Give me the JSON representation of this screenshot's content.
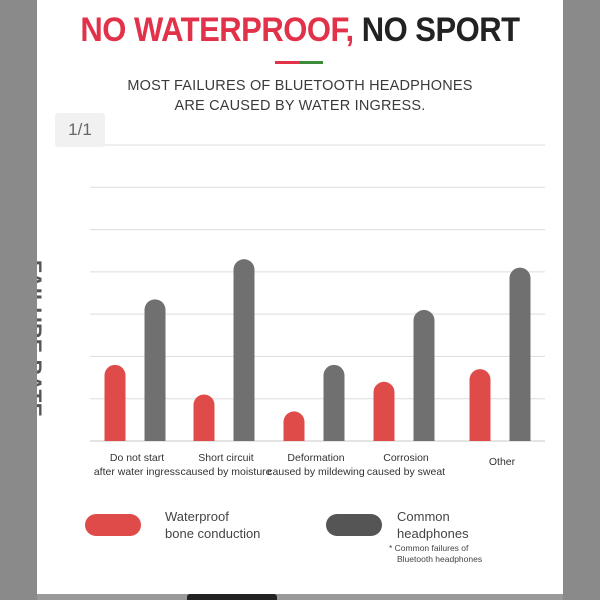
{
  "header": {
    "title_red": "NO WATERPROOF,",
    "title_dark": "NO SPORT",
    "subtitle_line1": "MOST FAILURES OF BLUETOOTH HEADPHONES",
    "subtitle_line2": "ARE CAUSED BY WATER INGRESS."
  },
  "page_indicator": "1/1",
  "legend": {
    "waterproof_line1": "Waterproof",
    "waterproof_line2": "bone conduction",
    "common_line1": "Common",
    "common_line2": "headphones",
    "footnote_line1": "Common failures of",
    "footnote_line2": "Bluetooth headphones"
  },
  "colors": {
    "waterproof": "#df4b49",
    "common": "#707070",
    "title_red": "#e2324a",
    "grid": "#dddddd"
  },
  "chart_data": {
    "type": "bar",
    "ylabel": "FAILURE RATE",
    "ylim": [
      0,
      7
    ],
    "grid": true,
    "legend_position": "bottom",
    "categories": [
      [
        "Do not start",
        "after water ingress"
      ],
      [
        "Short circuit",
        "caused by moisture"
      ],
      [
        "Deformation",
        "caused by mildewing"
      ],
      [
        "Corrosion",
        "caused by sweat"
      ],
      [
        "Other"
      ]
    ],
    "series": [
      {
        "name": "Waterproof bone conduction",
        "values": [
          1.8,
          1.1,
          0.7,
          1.4,
          1.7
        ]
      },
      {
        "name": "Common headphones",
        "values": [
          3.35,
          4.3,
          1.8,
          3.1,
          4.1
        ]
      }
    ]
  }
}
